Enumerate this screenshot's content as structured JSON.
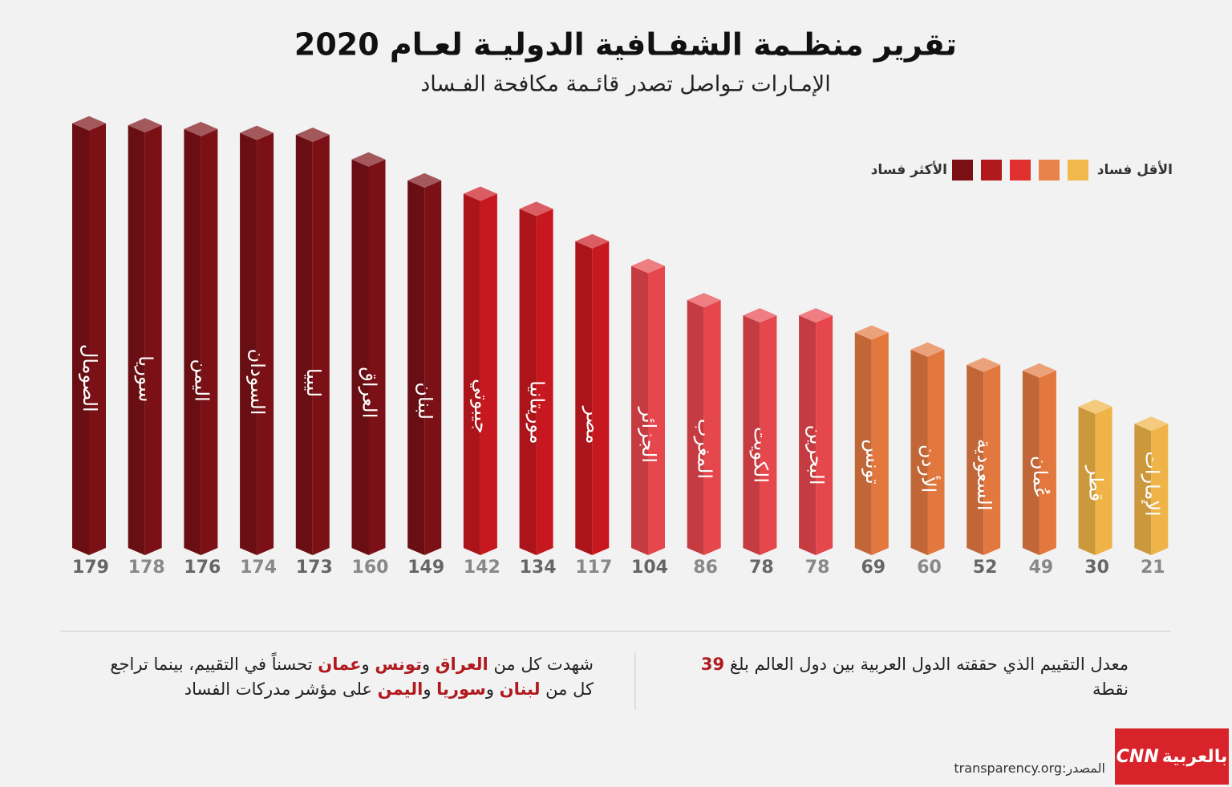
{
  "chart_data": {
    "type": "bar",
    "title": "تقرير منظـمة الشفـافية الدوليـة لعـام 2020",
    "subtitle": "الإمـارات تـواصل تصدر قائـمة مكافحة الفـساد",
    "categories": [
      "الصومال",
      "سوريا",
      "اليمن",
      "السودان",
      "ليبيا",
      "العراق",
      "لبنان",
      "جيبوتي",
      "موريتانيا",
      "مصر",
      "الجزائر",
      "المغرب",
      "الكويت",
      "البحرين",
      "تونس",
      "الأردن",
      "السعودية",
      "عُمان",
      "قطر",
      "الإمارات"
    ],
    "values": [
      179,
      178,
      176,
      174,
      173,
      160,
      149,
      142,
      134,
      117,
      104,
      86,
      78,
      78,
      69,
      60,
      52,
      49,
      30,
      21
    ],
    "colors": [
      "#7b1116",
      "#7b1116",
      "#7b1116",
      "#7b1116",
      "#7b1116",
      "#7b1116",
      "#7b1116",
      "#c8181f",
      "#c8181f",
      "#c8181f",
      "#e6474c",
      "#e6474c",
      "#e6474c",
      "#e6474c",
      "#e3783f",
      "#e3783f",
      "#e3783f",
      "#e3783f",
      "#efb347",
      "#efb347"
    ],
    "legend": {
      "low_label": "الأقل فساد",
      "high_label": "الأكثر فساد",
      "colors": [
        "#f2b84b",
        "#e8844a",
        "#e03030",
        "#b01a1e",
        "#7a1014"
      ]
    }
  },
  "notes": {
    "right": [
      {
        "text": "معدل التقييم الذي حققته الدول العربية بين دول العالم بلغ "
      },
      {
        "text": "39",
        "highlight": true
      },
      {
        "text": " نقطة"
      }
    ],
    "left": [
      {
        "text": "شهدت كل من "
      },
      {
        "text": "العراق",
        "highlight": true
      },
      {
        "text": " و"
      },
      {
        "text": "تونس",
        "highlight": true
      },
      {
        "text": " و"
      },
      {
        "text": "عمان",
        "highlight": true
      },
      {
        "text": " تحسناً في التقييم، بينما تراجع كل من "
      },
      {
        "text": "لبنان",
        "highlight": true
      },
      {
        "text": " و"
      },
      {
        "text": "سوريا",
        "highlight": true
      },
      {
        "text": " و"
      },
      {
        "text": "اليمن",
        "highlight": true
      },
      {
        "text": " على مؤشر مدركات الفساد"
      }
    ],
    "highlight_color": "#b01a1e"
  },
  "footer": {
    "source": "المصدر:transparency.org",
    "logo_brand": "CNN",
    "logo_suffix": "بالعربية"
  }
}
